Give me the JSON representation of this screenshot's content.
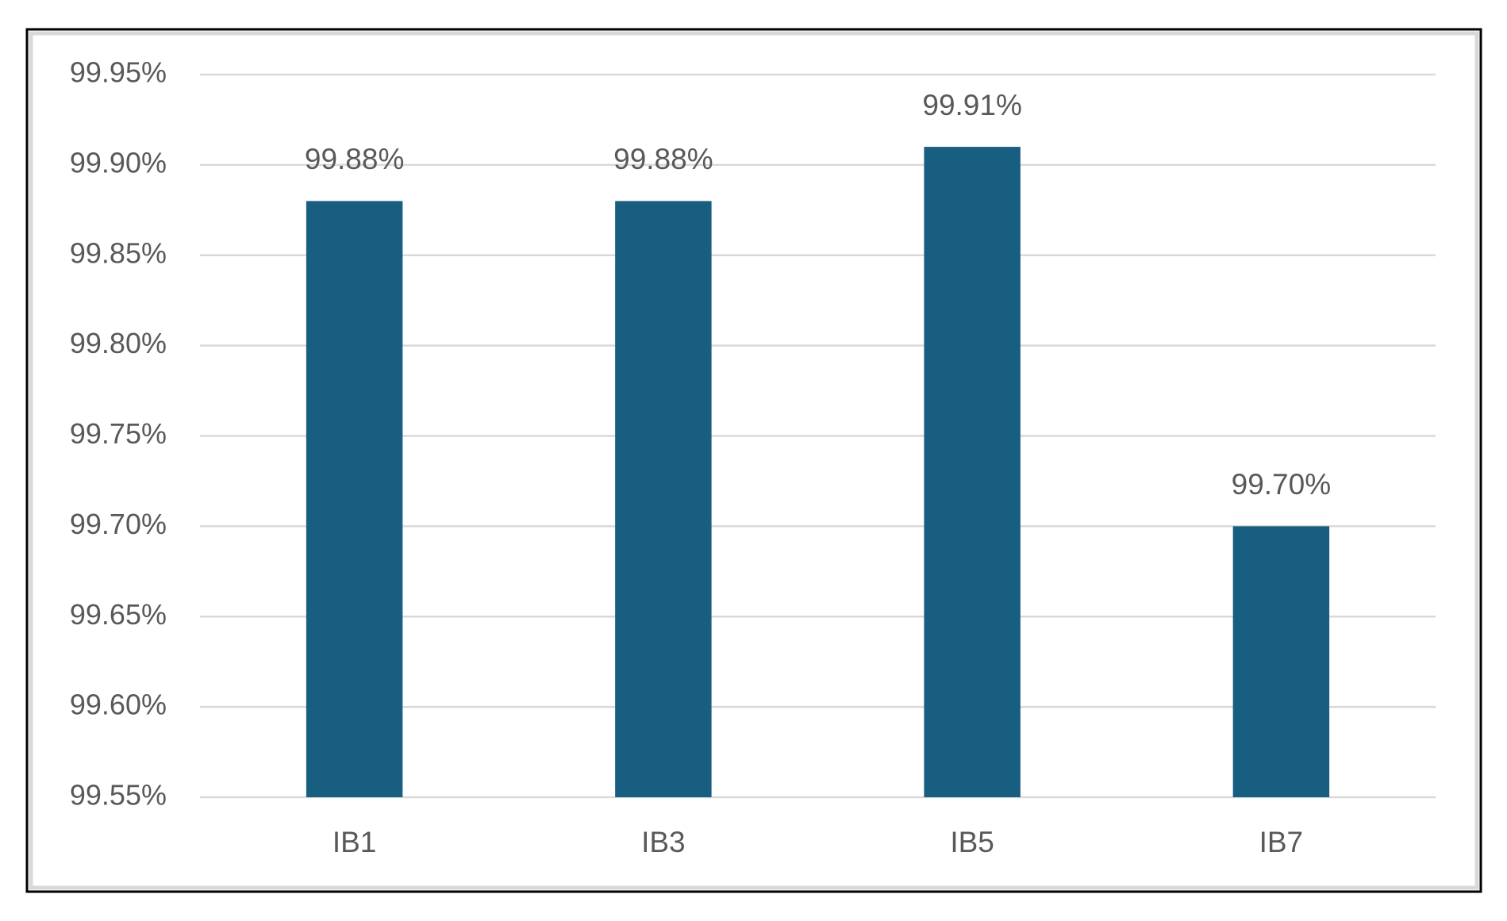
{
  "chart_data": {
    "type": "bar",
    "categories": [
      "IB1",
      "IB3",
      "IB5",
      "IB7"
    ],
    "values": [
      99.88,
      99.88,
      99.91,
      99.7
    ],
    "value_labels": [
      "99.88%",
      "99.88%",
      "99.91%",
      "99.70%"
    ],
    "color": "#175e80",
    "ylim": [
      99.55,
      99.95
    ],
    "yticks": [
      {
        "value": 99.55,
        "label": "99.55%"
      },
      {
        "value": 99.6,
        "label": "99.60%"
      },
      {
        "value": 99.65,
        "label": "99.65%"
      },
      {
        "value": 99.7,
        "label": "99.70%"
      },
      {
        "value": 99.75,
        "label": "99.75%"
      },
      {
        "value": 99.8,
        "label": "99.80%"
      },
      {
        "value": 99.85,
        "label": "99.85%"
      },
      {
        "value": 99.9,
        "label": "99.90%"
      },
      {
        "value": 99.95,
        "label": "99.95%"
      }
    ],
    "grid": true
  }
}
